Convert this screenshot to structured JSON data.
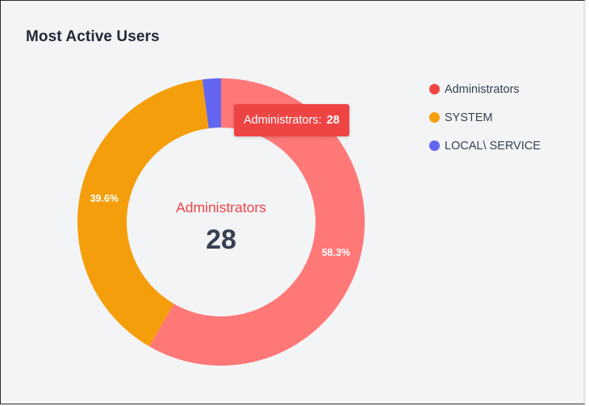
{
  "card": {
    "title": "Most Active Users"
  },
  "tooltip": {
    "label": "Administrators:",
    "value": "28"
  },
  "center": {
    "label": "Administrators",
    "value": "28"
  },
  "chart_data": {
    "type": "pie",
    "variant": "donut",
    "title": "Most Active Users",
    "legend_position": "right",
    "start_angle_deg": 0,
    "direction": "clockwise",
    "slices": [
      {
        "label": "Administrators",
        "value": 28,
        "percent_label": "58.3%",
        "color": "#ff7878",
        "legend_color": "#ef4444"
      },
      {
        "label": "SYSTEM",
        "value": 19,
        "percent_label": "39.6%",
        "color": "#f59e0b",
        "legend_color": "#f59e0b"
      },
      {
        "label": "LOCAL\\ SERVICE",
        "value": 1,
        "percent_label": "",
        "color": "#6366f1",
        "legend_color": "#6366f1"
      }
    ]
  },
  "colors": {
    "card_background": "#f3f4f6",
    "title": "#1f2937",
    "center_label": "#ef4444",
    "center_value": "#374151",
    "tooltip_background": "#ef4444",
    "slice_label": "#ffffff"
  }
}
